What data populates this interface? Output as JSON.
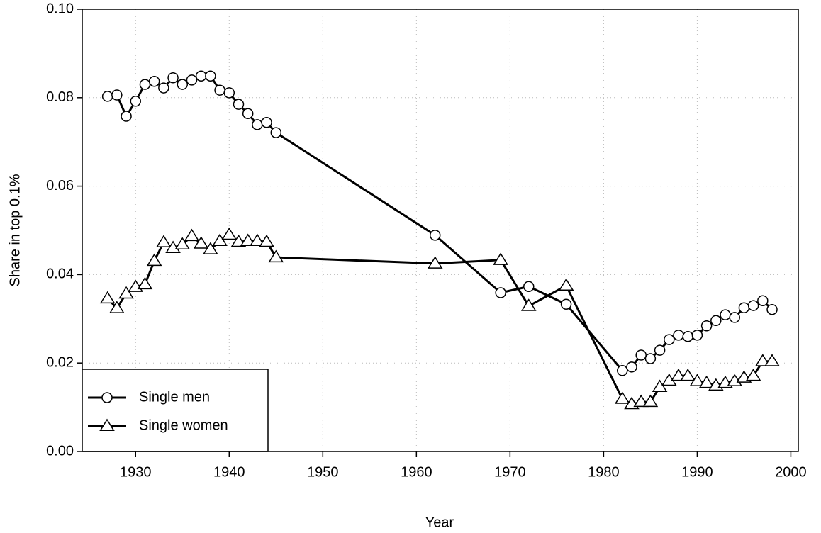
{
  "chart_data": {
    "type": "line",
    "x_label": "Year",
    "y_label": "Share in top 0.1%",
    "xlim": [
      1924.3,
      2000.8
    ],
    "xticks": [
      1930,
      1940,
      1950,
      1960,
      1970,
      1980,
      1990,
      2000
    ],
    "ylim": [
      0,
      0.1
    ],
    "yticks": [
      {
        "value": 0,
        "label": "0.00"
      },
      {
        "value": 0.02,
        "label": "0.02"
      },
      {
        "value": 0.04,
        "label": "0.04"
      },
      {
        "value": 0.06,
        "label": "0.06"
      },
      {
        "value": 0.08,
        "label": "0.08"
      },
      {
        "value": 0.1,
        "label": "0.10"
      }
    ],
    "grid": true,
    "legend_position": "lower left",
    "x": [
      1927,
      1928,
      1929,
      1930,
      1931,
      1932,
      1933,
      1934,
      1935,
      1936,
      1937,
      1938,
      1939,
      1940,
      1941,
      1942,
      1943,
      1944,
      1945,
      1962,
      1969,
      1972,
      1976,
      1982,
      1983,
      1984,
      1985,
      1986,
      1987,
      1988,
      1989,
      1990,
      1991,
      1992,
      1993,
      1994,
      1995,
      1996,
      1997,
      1998
    ],
    "series": [
      {
        "name": "Single men",
        "color": "#000000",
        "marker": "circle",
        "values": [
          0.0803,
          0.0806,
          0.0758,
          0.0792,
          0.083,
          0.0837,
          0.0822,
          0.0845,
          0.083,
          0.084,
          0.0849,
          0.0849,
          0.0817,
          0.0811,
          0.0785,
          0.0764,
          0.0739,
          0.0744,
          0.0721,
          0.0489,
          0.0359,
          0.0373,
          0.0333,
          0.0183,
          0.0191,
          0.0218,
          0.021,
          0.0229,
          0.0253,
          0.0263,
          0.026,
          0.0263,
          0.0284,
          0.0296,
          0.0309,
          0.0303,
          0.0325,
          0.033,
          0.0341,
          0.0321
        ]
      },
      {
        "name": "Single women",
        "color": "#000000",
        "marker": "triangle",
        "values": [
          0.0346,
          0.0324,
          0.0357,
          0.0372,
          0.0378,
          0.0431,
          0.0473,
          0.046,
          0.0468,
          0.0487,
          0.047,
          0.0457,
          0.0476,
          0.049,
          0.0474,
          0.0476,
          0.0476,
          0.0474,
          0.0439,
          0.0425,
          0.0433,
          0.0329,
          0.0375,
          0.0119,
          0.0107,
          0.0112,
          0.0112,
          0.0146,
          0.016,
          0.0171,
          0.0171,
          0.0159,
          0.0155,
          0.0149,
          0.0155,
          0.0159,
          0.0167,
          0.0171,
          0.0204,
          0.0204
        ]
      }
    ]
  }
}
